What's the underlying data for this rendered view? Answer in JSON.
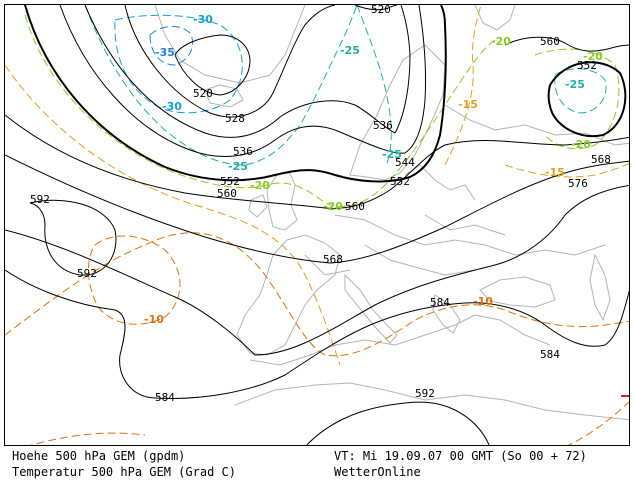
{
  "map": {
    "height_labels": [
      "592",
      "592",
      "584",
      "584",
      "584",
      "592",
      "576",
      "568",
      "568",
      "560",
      "560",
      "560",
      "552",
      "552",
      "544",
      "536",
      "536",
      "528",
      "520",
      "520",
      "552"
    ],
    "temperature_labels": [
      "-30",
      "-35",
      "-30",
      "-25",
      "-25",
      "-25",
      "-20",
      "-20",
      "-20",
      "-15",
      "-15",
      "-10",
      "-10",
      "-20",
      "-25",
      "-20"
    ],
    "colors": {
      "height_contour": "#000000",
      "land_border": "#b4b4b4",
      "temp_minus10": "#e07010",
      "temp_minus15": "#e0a020",
      "temp_minus20": "#88cc22",
      "temp_minus25": "#20b0a0",
      "temp_minus30": "#10a0d0",
      "temp_minus35": "#2080e0"
    }
  },
  "footer": {
    "line1": "Hoehe 500 hPa GEM (gpdm)",
    "line2": "Temperatur 500 hPa GEM (Grad C)",
    "valid_time": "VT: Mi 19.09.07 00 GMT (So 00 + 72)",
    "provider": "WetterOnline"
  }
}
